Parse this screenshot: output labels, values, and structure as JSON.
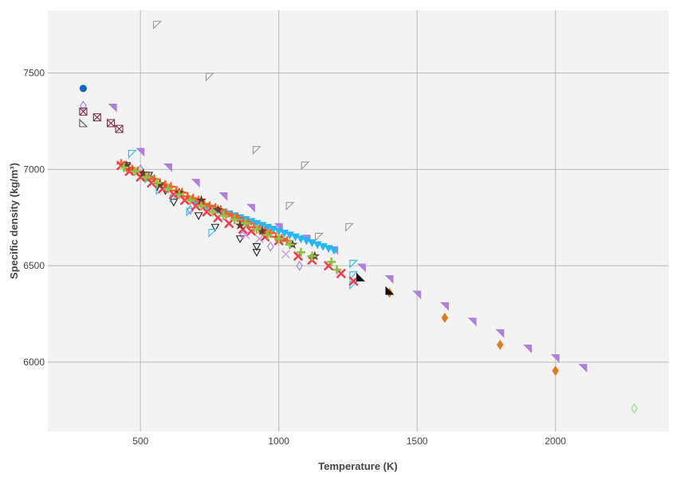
{
  "chart_data": {
    "type": "scatter",
    "xlabel": "Temperature (K)",
    "ylabel": "Specific density (kg/m³)",
    "xlim": [
      165,
      2410
    ],
    "ylim": [
      5640,
      7825
    ],
    "xticks": [
      500,
      1000,
      1500,
      2000
    ],
    "yticks": [
      6000,
      6500,
      7000,
      7500
    ],
    "grid": true,
    "legend": "none",
    "plot_background": "#f3f3f3",
    "grid_color": "#bbbbbb",
    "series": [
      {
        "marker": "circle",
        "color": "#1565c0",
        "filled": true,
        "points": [
          [
            293,
            7420
          ]
        ]
      },
      {
        "marker": "tri-ul",
        "color": "#999999",
        "filled": false,
        "points": [
          [
            560,
            7750
          ],
          [
            750,
            7480
          ],
          [
            920,
            7100
          ],
          [
            1095,
            7020
          ],
          [
            1040,
            6810
          ],
          [
            1145,
            6650
          ],
          [
            1255,
            6700
          ]
        ]
      },
      {
        "marker": "tri-ur",
        "color": "#b07fd9",
        "filled": true,
        "points": [
          [
            400,
            7320
          ],
          [
            500,
            7090
          ],
          [
            600,
            7010
          ],
          [
            700,
            6930
          ],
          [
            800,
            6860
          ],
          [
            900,
            6800
          ],
          [
            1000,
            6700
          ],
          [
            1100,
            6640
          ],
          [
            1200,
            6580
          ],
          [
            1300,
            6490
          ],
          [
            1400,
            6430
          ],
          [
            1500,
            6350
          ],
          [
            1600,
            6290
          ],
          [
            1700,
            6210
          ],
          [
            1800,
            6150
          ],
          [
            1900,
            6070
          ],
          [
            2000,
            6020
          ],
          [
            2100,
            5970
          ]
        ]
      },
      {
        "marker": "diamond",
        "color": "#e07b20",
        "filled": true,
        "points": [
          [
            1400,
            6360
          ],
          [
            1600,
            6230
          ],
          [
            1800,
            6090
          ],
          [
            2000,
            5955
          ]
        ]
      },
      {
        "marker": "diamond",
        "color": "#7ddf7d",
        "filled": false,
        "points": [
          [
            2285,
            5760
          ]
        ]
      },
      {
        "marker": "diamond",
        "color": "#9a7fe0",
        "filled": false,
        "points": [
          [
            293,
            7330
          ],
          [
            500,
            7000
          ],
          [
            680,
            6790
          ],
          [
            870,
            6660
          ],
          [
            970,
            6600
          ],
          [
            1075,
            6500
          ]
        ]
      },
      {
        "marker": "tri-down",
        "color": "#222222",
        "filled": false,
        "points": [
          [
            450,
            7020
          ],
          [
            530,
            6970
          ],
          [
            560,
            6910
          ],
          [
            590,
            6890
          ],
          [
            620,
            6830
          ],
          [
            710,
            6760
          ],
          [
            770,
            6700
          ],
          [
            860,
            6640
          ],
          [
            920,
            6600
          ],
          [
            920,
            6570
          ]
        ]
      },
      {
        "marker": "tri-ll",
        "color": "#555555",
        "filled": false,
        "points": [
          [
            293,
            7240
          ]
        ]
      },
      {
        "marker": "square-x",
        "color": "#7a2a3a",
        "filled": false,
        "points": [
          [
            293,
            7300
          ],
          [
            343,
            7270
          ],
          [
            393,
            7240
          ],
          [
            423,
            7210
          ]
        ]
      },
      {
        "marker": "tri-ul",
        "color": "#29b6f6",
        "filled": false,
        "points": [
          [
            470,
            7080
          ],
          [
            530,
            6950
          ],
          [
            570,
            6890
          ],
          [
            620,
            6850
          ],
          [
            680,
            6780
          ],
          [
            760,
            6670
          ],
          [
            1270,
            6510
          ],
          [
            1270,
            6450
          ],
          [
            1270,
            6400
          ]
        ]
      },
      {
        "marker": "tri-down",
        "color": "#29b6f6",
        "filled": true,
        "points": [
          [
            700,
            6830
          ],
          [
            720,
            6820
          ],
          [
            740,
            6810
          ],
          [
            760,
            6800
          ],
          [
            780,
            6790
          ],
          [
            800,
            6780
          ],
          [
            820,
            6770
          ],
          [
            840,
            6760
          ],
          [
            860,
            6750
          ],
          [
            880,
            6740
          ],
          [
            900,
            6730
          ],
          [
            920,
            6720
          ],
          [
            940,
            6710
          ],
          [
            960,
            6700
          ],
          [
            980,
            6690
          ],
          [
            1000,
            6680
          ],
          [
            1020,
            6670
          ],
          [
            1040,
            6660
          ],
          [
            1060,
            6650
          ],
          [
            1080,
            6640
          ],
          [
            1100,
            6630
          ],
          [
            1120,
            6620
          ],
          [
            1140,
            6610
          ],
          [
            1160,
            6600
          ],
          [
            1180,
            6590
          ],
          [
            1200,
            6580
          ]
        ]
      },
      {
        "marker": "plus",
        "color": "#f26522",
        "filled": true,
        "points": [
          [
            430,
            7030
          ],
          [
            450,
            7010
          ],
          [
            470,
            7000
          ],
          [
            490,
            6990
          ],
          [
            510,
            6970
          ],
          [
            530,
            6960
          ],
          [
            550,
            6950
          ],
          [
            570,
            6930
          ],
          [
            590,
            6920
          ],
          [
            610,
            6910
          ],
          [
            630,
            6890
          ],
          [
            650,
            6880
          ],
          [
            670,
            6860
          ],
          [
            690,
            6850
          ],
          [
            710,
            6840
          ],
          [
            730,
            6820
          ],
          [
            750,
            6810
          ],
          [
            770,
            6800
          ],
          [
            790,
            6790
          ],
          [
            810,
            6770
          ],
          [
            830,
            6760
          ],
          [
            850,
            6750
          ],
          [
            870,
            6730
          ],
          [
            890,
            6720
          ],
          [
            910,
            6700
          ],
          [
            930,
            6690
          ],
          [
            950,
            6680
          ],
          [
            970,
            6670
          ],
          [
            990,
            6650
          ],
          [
            1010,
            6640
          ],
          [
            1030,
            6630
          ]
        ]
      },
      {
        "marker": "x",
        "color": "#ef4050",
        "filled": true,
        "points": [
          [
            430,
            7020
          ],
          [
            460,
            6990
          ],
          [
            500,
            6960
          ],
          [
            540,
            6930
          ],
          [
            580,
            6900
          ],
          [
            620,
            6870
          ],
          [
            660,
            6840
          ],
          [
            700,
            6810
          ],
          [
            740,
            6780
          ],
          [
            780,
            6750
          ],
          [
            820,
            6720
          ],
          [
            870,
            6690
          ],
          [
            900,
            6680
          ],
          [
            950,
            6650
          ],
          [
            1000,
            6630
          ],
          [
            1070,
            6550
          ],
          [
            1120,
            6530
          ],
          [
            1180,
            6500
          ],
          [
            1225,
            6460
          ],
          [
            1270,
            6420
          ]
        ]
      },
      {
        "marker": "x",
        "color": "#cc99e0",
        "filled": false,
        "points": [
          [
            880,
            6660
          ],
          [
            930,
            6640
          ],
          [
            1025,
            6560
          ]
        ]
      },
      {
        "marker": "star",
        "color": "#6d3a2e",
        "filled": true,
        "points": [
          [
            450,
            7020
          ],
          [
            510,
            6980
          ],
          [
            570,
            6920
          ],
          [
            640,
            6880
          ],
          [
            720,
            6840
          ],
          [
            780,
            6790
          ],
          [
            860,
            6710
          ],
          [
            940,
            6680
          ],
          [
            1050,
            6610
          ],
          [
            1130,
            6550
          ]
        ]
      },
      {
        "marker": "plus",
        "color": "#8bc34a",
        "filled": true,
        "points": [
          [
            440,
            7010
          ],
          [
            480,
            6990
          ],
          [
            520,
            6960
          ],
          [
            560,
            6930
          ],
          [
            600,
            6900
          ],
          [
            640,
            6870
          ],
          [
            680,
            6840
          ],
          [
            720,
            6810
          ],
          [
            760,
            6780
          ],
          [
            800,
            6760
          ],
          [
            840,
            6740
          ],
          [
            880,
            6720
          ],
          [
            920,
            6690
          ],
          [
            960,
            6660
          ],
          [
            1000,
            6640
          ],
          [
            1040,
            6610
          ],
          [
            1080,
            6570
          ],
          [
            1120,
            6550
          ],
          [
            1190,
            6520
          ],
          [
            1210,
            6480
          ]
        ]
      },
      {
        "marker": "tri-ll",
        "color": "#111111",
        "filled": true,
        "points": [
          [
            1295,
            6440
          ],
          [
            1400,
            6370
          ]
        ]
      }
    ]
  }
}
